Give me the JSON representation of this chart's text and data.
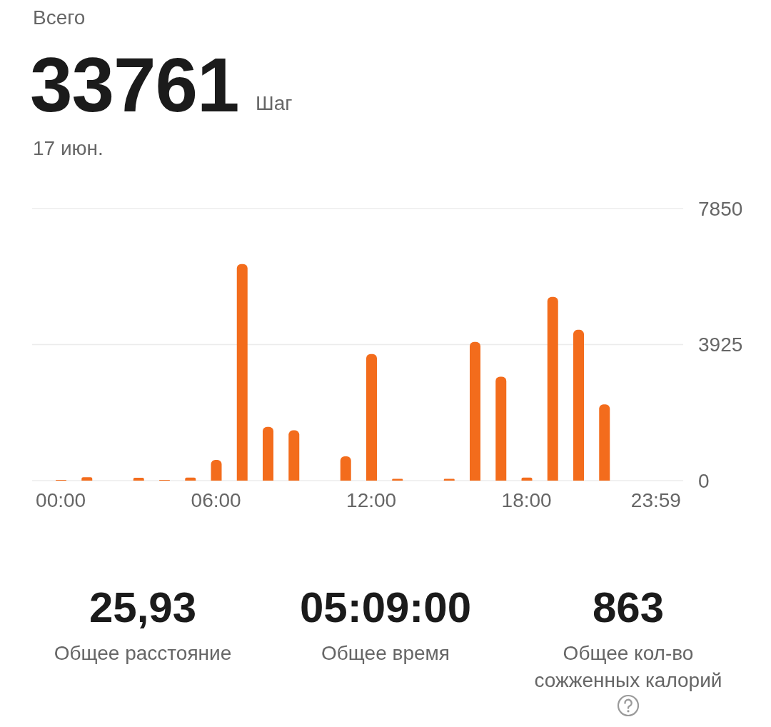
{
  "chart_data": {
    "type": "bar",
    "title": "Всего",
    "subtitle": "17 июн.",
    "annotations": [
      "33761",
      "Шаг",
      "25,93",
      "Общее расстояние",
      "05:09:00",
      "Общее время",
      "863",
      "Общее кол-во сожженных калорий"
    ],
    "categories": [
      "00:00",
      null,
      null,
      null,
      null,
      null,
      "06:00",
      null,
      null,
      null,
      null,
      null,
      "12:00",
      null,
      null,
      null,
      null,
      null,
      "18:00",
      null,
      null,
      null,
      null,
      "23:59"
    ],
    "values": [
      20,
      100,
      0,
      80,
      20,
      90,
      600,
      6250,
      1550,
      1450,
      0,
      700,
      3650,
      50,
      0,
      50,
      4000,
      3000,
      90,
      5300,
      4350,
      2200,
      0,
      0
    ],
    "color": "#f36c1c",
    "ylim": [
      0,
      7850
    ],
    "yticks": [
      0,
      3925,
      7850
    ],
    "grid": "y"
  }
}
